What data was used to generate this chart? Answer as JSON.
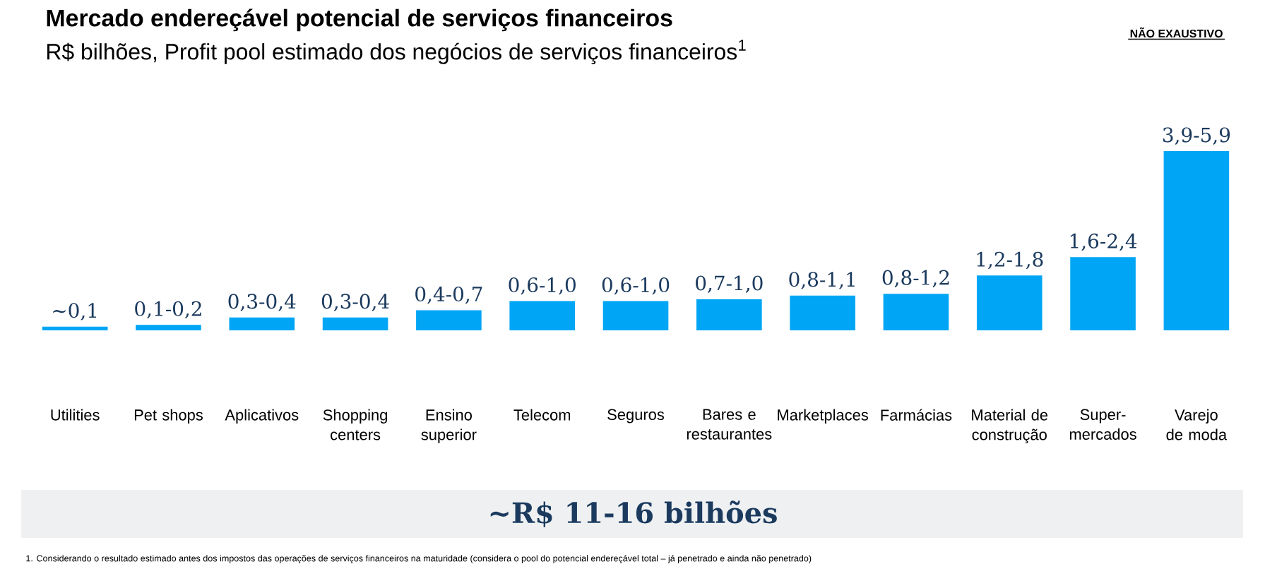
{
  "chart_data": {
    "type": "bar",
    "title": "Mercado endereçável potencial de serviços financeiros",
    "subtitle": "R$ bilhões, Profit pool estimado dos negócios de serviços financeiros$^{1}$",
    "categories": [
      "Utilities",
      "Pet shops",
      "Aplicativos",
      "Shopping centers",
      "Ensino superior",
      "Telecom",
      "Seguros",
      "Bares e restaurantes",
      "Marketplaces",
      "Farmácias",
      "Material de construção",
      "Super-mercados",
      "Varejo de moda"
    ],
    "values": [
      0.1,
      0.15,
      0.35,
      0.35,
      0.55,
      0.8,
      0.8,
      0.85,
      0.95,
      1.0,
      1.5,
      2.0,
      4.9
    ],
    "value_labels": [
      "~0,1",
      "0,1-0,2",
      "0,3-0,4",
      "0,3-0,4",
      "0,4-0,7",
      "0,6-1,0",
      "0,6-1,0",
      "0,7-1,0",
      "0,8-1,1",
      "0,8-1,2",
      "1,2-1,8",
      "1,6-2,4",
      "3,9-5,9"
    ],
    "color": "#00a6f5",
    "annotations": [
      "NÃO EXAUSTIVO",
      "~R$ 11-16 bilhões",
      "1.   Considerando o resultado estimado antes dos impostos das operações de serviços financeiros na maturidade (considera o pool do potencial endereçável total – já penetrado e ainda não penetrado)"
    ]
  }
}
